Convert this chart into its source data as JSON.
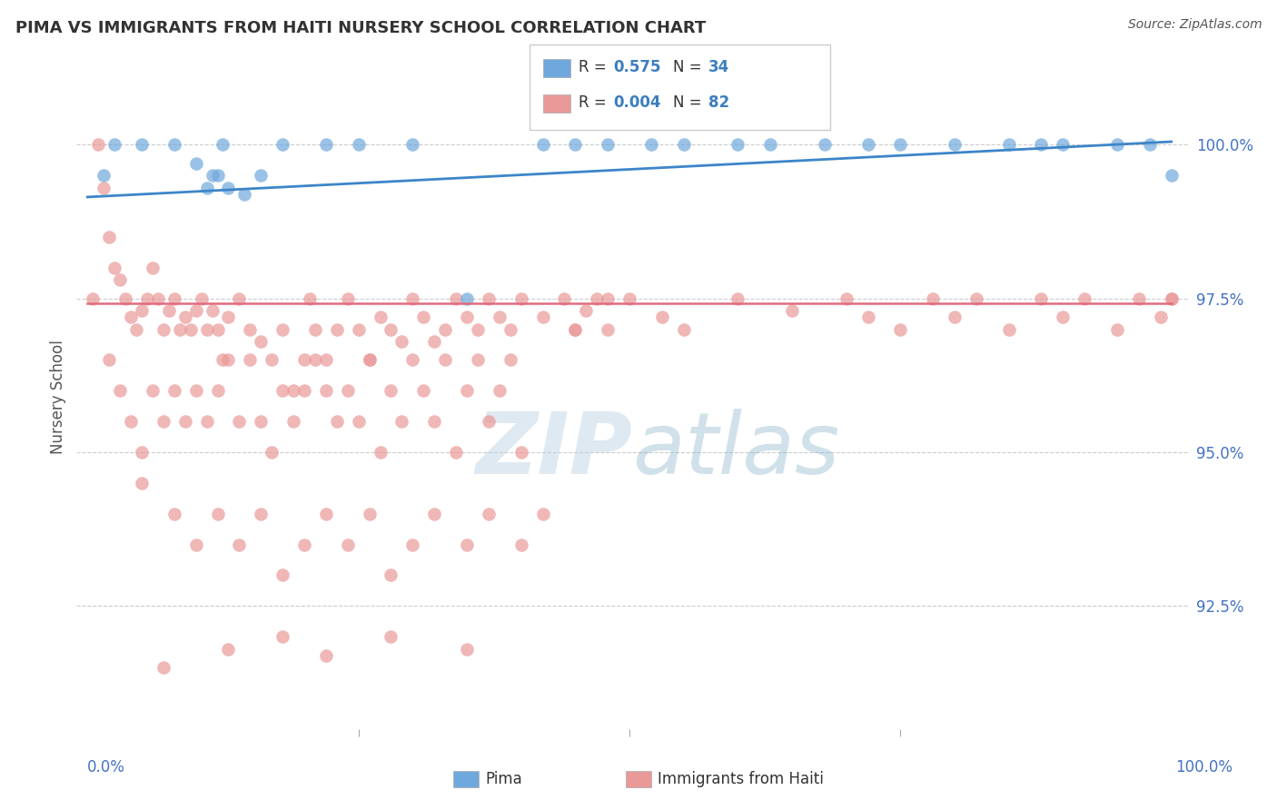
{
  "title": "PIMA VS IMMIGRANTS FROM HAITI NURSERY SCHOOL CORRELATION CHART",
  "source": "Source: ZipAtlas.com",
  "ylabel": "Nursery School",
  "ylim": [
    90.5,
    101.3
  ],
  "xlim": [
    -1.0,
    101.5
  ],
  "blue_color": "#6fa8dc",
  "pink_color": "#ea9999",
  "blue_line_color": "#3d85c8",
  "pink_line_color": "#e06c7e",
  "background_color": "#ffffff",
  "watermark": "ZIPatlas",
  "legend_rval_blue": "0.575",
  "legend_nval_blue": "34",
  "legend_rval_pink": "0.004",
  "legend_nval_pink": "82",
  "pima_x": [
    1.5,
    2.5,
    5.0,
    8.0,
    10.0,
    11.0,
    11.5,
    12.0,
    12.5,
    13.0,
    14.5,
    16.0,
    18.0,
    22.0,
    25.0,
    30.0,
    35.0,
    42.0,
    45.0,
    48.0,
    52.0,
    55.0,
    60.0,
    63.0,
    68.0,
    72.0,
    75.0,
    80.0,
    85.0,
    88.0,
    90.0,
    95.0,
    98.0,
    100.0
  ],
  "pima_y": [
    99.5,
    100.0,
    100.0,
    100.0,
    99.7,
    99.3,
    99.5,
    99.5,
    100.0,
    99.3,
    99.2,
    99.5,
    100.0,
    100.0,
    100.0,
    100.0,
    97.5,
    100.0,
    100.0,
    100.0,
    100.0,
    100.0,
    100.0,
    100.0,
    100.0,
    100.0,
    100.0,
    100.0,
    100.0,
    100.0,
    100.0,
    100.0,
    100.0,
    99.5
  ],
  "haiti_x": [
    0.5,
    1.0,
    1.5,
    2.0,
    2.5,
    3.0,
    3.5,
    4.0,
    4.5,
    5.0,
    5.5,
    6.0,
    6.5,
    7.0,
    7.5,
    8.0,
    8.5,
    9.0,
    9.5,
    10.0,
    10.5,
    11.0,
    11.5,
    12.0,
    12.5,
    13.0,
    14.0,
    15.0,
    16.0,
    17.0,
    18.0,
    19.0,
    20.0,
    20.5,
    21.0,
    22.0,
    23.0,
    24.0,
    25.0,
    26.0,
    27.0,
    28.0,
    29.0,
    30.0,
    31.0,
    32.0,
    33.0,
    34.0,
    35.0,
    36.0,
    37.0,
    38.0,
    39.0,
    40.0,
    42.0,
    44.0,
    45.0,
    46.0,
    47.0,
    48.0,
    50.0,
    53.0,
    55.0,
    60.0,
    65.0,
    70.0,
    72.0,
    75.0,
    78.0,
    80.0,
    82.0,
    85.0,
    88.0,
    90.0,
    92.0,
    95.0,
    97.0,
    99.0,
    100.0,
    45.0,
    48.0,
    100.0
  ],
  "haiti_y": [
    97.5,
    100.0,
    99.3,
    98.5,
    98.0,
    97.8,
    97.5,
    97.2,
    97.0,
    97.3,
    97.5,
    98.0,
    97.5,
    97.0,
    97.3,
    97.5,
    97.0,
    97.2,
    97.0,
    97.3,
    97.5,
    97.0,
    97.3,
    97.0,
    96.5,
    97.2,
    97.5,
    97.0,
    96.8,
    96.5,
    97.0,
    96.0,
    96.5,
    97.5,
    97.0,
    96.5,
    97.0,
    97.5,
    97.0,
    96.5,
    97.2,
    97.0,
    96.8,
    97.5,
    97.2,
    96.8,
    97.0,
    97.5,
    97.2,
    97.0,
    97.5,
    97.2,
    97.0,
    97.5,
    97.2,
    97.5,
    97.0,
    97.3,
    97.5,
    97.0,
    97.5,
    97.2,
    97.0,
    97.5,
    97.3,
    97.5,
    97.2,
    97.0,
    97.5,
    97.2,
    97.5,
    97.0,
    97.5,
    97.2,
    97.5,
    97.0,
    97.5,
    97.2,
    97.5,
    97.0,
    97.5,
    97.5
  ],
  "haiti_x_low": [
    2.0,
    3.0,
    4.0,
    5.0,
    6.0,
    7.0,
    8.0,
    9.0,
    10.0,
    11.0,
    12.0,
    13.0,
    14.0,
    15.0,
    16.0,
    17.0,
    18.0,
    19.0,
    20.0,
    21.0,
    22.0,
    23.0,
    24.0,
    25.0,
    26.0,
    27.0,
    28.0,
    29.0,
    30.0,
    31.0,
    32.0,
    33.0,
    34.0,
    35.0,
    36.0,
    37.0,
    38.0,
    39.0,
    40.0
  ],
  "haiti_y_low": [
    96.5,
    96.0,
    95.5,
    95.0,
    96.0,
    95.5,
    96.0,
    95.5,
    96.0,
    95.5,
    96.0,
    96.5,
    95.5,
    96.5,
    95.5,
    95.0,
    96.0,
    95.5,
    96.0,
    96.5,
    96.0,
    95.5,
    96.0,
    95.5,
    96.5,
    95.0,
    96.0,
    95.5,
    96.5,
    96.0,
    95.5,
    96.5,
    95.0,
    96.0,
    96.5,
    95.5,
    96.0,
    96.5,
    95.0
  ],
  "haiti_x_vlow": [
    5.0,
    8.0,
    10.0,
    12.0,
    14.0,
    16.0,
    18.0,
    20.0,
    22.0,
    24.0,
    26.0,
    28.0,
    30.0,
    32.0,
    35.0,
    37.0,
    40.0,
    42.0
  ],
  "haiti_y_vlow": [
    94.5,
    94.0,
    93.5,
    94.0,
    93.5,
    94.0,
    93.0,
    93.5,
    94.0,
    93.5,
    94.0,
    93.0,
    93.5,
    94.0,
    93.5,
    94.0,
    93.5,
    94.0
  ],
  "haiti_x_bot": [
    7.0,
    13.0,
    18.0,
    22.0,
    28.0,
    35.0
  ],
  "haiti_y_bot": [
    91.5,
    91.8,
    92.0,
    91.7,
    92.0,
    91.8
  ]
}
